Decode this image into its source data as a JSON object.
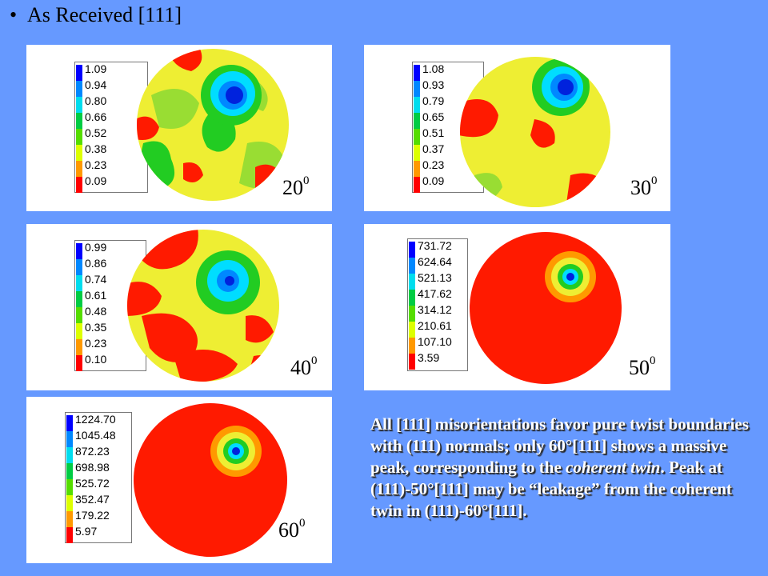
{
  "title": "As Received [111]",
  "colors": {
    "background": "#6699ff",
    "scale": [
      "#0000ff",
      "#0088ff",
      "#00ddee",
      "#00cc44",
      "#55dd00",
      "#ddff00",
      "#ff9900",
      "#ff0000"
    ],
    "red": "#ff1a00",
    "yellow": "#eeee33",
    "lightgreen": "#99dd33",
    "green": "#22cc22",
    "cyan": "#00ddff",
    "blue": "#0022dd"
  },
  "panels": [
    {
      "id": "p20",
      "angle_base": "20",
      "angle_sup": "0",
      "legend": [
        "1.09",
        "0.94",
        "0.80",
        "0.66",
        "0.52",
        "0.38",
        "0.23",
        "0.09"
      ]
    },
    {
      "id": "p30",
      "angle_base": "30",
      "angle_sup": "0",
      "legend": [
        "1.08",
        "0.93",
        "0.79",
        "0.65",
        "0.51",
        "0.37",
        "0.23",
        "0.09"
      ]
    },
    {
      "id": "p40",
      "angle_base": "40",
      "angle_sup": "0",
      "legend": [
        "0.99",
        "0.86",
        "0.74",
        "0.61",
        "0.48",
        "0.35",
        "0.23",
        "0.10"
      ]
    },
    {
      "id": "p50",
      "angle_base": "50",
      "angle_sup": "0",
      "legend": [
        "731.72",
        "624.64",
        "521.13",
        "417.62",
        "314.12",
        "210.61",
        "107.10",
        "3.59"
      ]
    },
    {
      "id": "p60",
      "angle_base": "60",
      "angle_sup": "0",
      "legend": [
        "1224.70",
        "1045.48",
        "872.23",
        "698.98",
        "525.72",
        "352.47",
        "179.22",
        "5.97"
      ]
    }
  ],
  "caption": {
    "part1": "All [111] misorientations favor pure twist boundaries with (111) normals; only 60°[111] shows a massive peak, corresponding to the ",
    "emph": "coherent twin",
    "part2": ".  Peak at (111)-50°[111] may be “leakage” from the coherent twin in (111)-60°[111]."
  }
}
